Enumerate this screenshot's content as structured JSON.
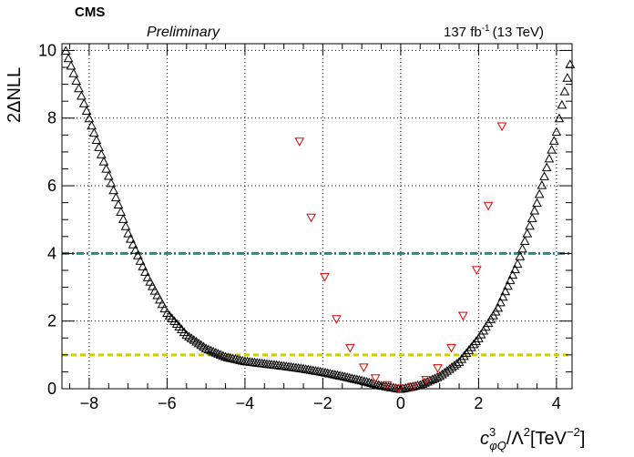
{
  "header": {
    "experiment": "CMS",
    "status": "Preliminary",
    "lumi_sup": "-1",
    "lumi_energy": "(13 TeV)"
  },
  "chart_data": {
    "type": "scatter",
    "ylabel": "2ΔNLL",
    "xlabel_parts": {
      "c": "c",
      "sup3": "3",
      "sub": "φQ",
      "lambda": "/Λ",
      "sup2": "2",
      "unit_open": "[TeV",
      "unit_sup": "−2",
      "unit_close": "]"
    },
    "xlim": [
      -8.7,
      4.4
    ],
    "ylim": [
      0,
      10.2
    ],
    "xticks": [
      -8,
      -6,
      -4,
      -2,
      0,
      2,
      4
    ],
    "yticks": [
      0,
      2,
      4,
      6,
      8,
      10
    ],
    "grid": true,
    "reference_lines": [
      {
        "y": 1,
        "style": "dashed",
        "color": "#cccc00"
      },
      {
        "y": 4,
        "style": "dash-dot",
        "color": "#1f8a8a"
      }
    ],
    "series": [
      {
        "marker": "triangle-up-open",
        "color": "#000000",
        "points": [
          [
            -8.6,
            10.0
          ],
          [
            -8.0,
            8.0
          ],
          [
            -7.5,
            6.3
          ],
          [
            -7.0,
            4.6
          ],
          [
            -6.5,
            3.3
          ],
          [
            -6.0,
            2.25
          ],
          [
            -5.5,
            1.6
          ],
          [
            -5.0,
            1.2
          ],
          [
            -4.5,
            0.95
          ],
          [
            -4.0,
            0.82
          ],
          [
            -3.5,
            0.75
          ],
          [
            -3.0,
            0.68
          ],
          [
            -2.5,
            0.6
          ],
          [
            -2.0,
            0.5
          ],
          [
            -1.5,
            0.38
          ],
          [
            -1.0,
            0.25
          ],
          [
            -0.5,
            0.1
          ],
          [
            0.0,
            0.0
          ],
          [
            0.5,
            0.12
          ],
          [
            1.0,
            0.38
          ],
          [
            1.5,
            0.8
          ],
          [
            2.0,
            1.5
          ],
          [
            2.5,
            2.4
          ],
          [
            3.0,
            3.7
          ],
          [
            3.5,
            5.5
          ],
          [
            4.0,
            7.6
          ],
          [
            4.35,
            9.6
          ]
        ]
      },
      {
        "marker": "triangle-down-open",
        "color": "#dd0000",
        "points": [
          [
            -2.6,
            7.3
          ],
          [
            -2.3,
            5.05
          ],
          [
            -1.95,
            3.3
          ],
          [
            -1.65,
            2.05
          ],
          [
            -1.3,
            1.2
          ],
          [
            -0.95,
            0.62
          ],
          [
            -0.65,
            0.3
          ],
          [
            -0.35,
            0.1
          ],
          [
            -0.05,
            0.0
          ],
          [
            0.3,
            0.05
          ],
          [
            0.65,
            0.25
          ],
          [
            0.95,
            0.6
          ],
          [
            1.3,
            1.2
          ],
          [
            1.6,
            2.15
          ],
          [
            1.95,
            3.5
          ],
          [
            2.25,
            5.4
          ],
          [
            2.6,
            7.75
          ]
        ]
      }
    ]
  }
}
